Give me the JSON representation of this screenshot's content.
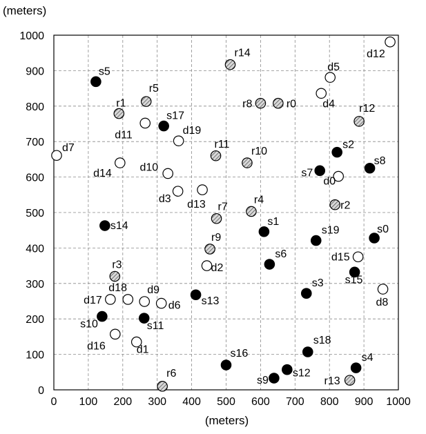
{
  "chart_data": {
    "type": "scatter",
    "ylabel": "(meters)",
    "xlabel": "(meters)",
    "xlim": [
      0,
      1000
    ],
    "ylim": [
      0,
      1000
    ],
    "xticks": [
      0,
      100,
      200,
      300,
      400,
      500,
      600,
      700,
      800,
      900,
      1000
    ],
    "yticks": [
      0,
      100,
      200,
      300,
      400,
      500,
      600,
      700,
      800,
      900,
      1000
    ],
    "grid": true,
    "series": [
      {
        "marker": "filled",
        "color": "#000000",
        "points": [
          {
            "label": "s0",
            "x": 930,
            "y": 428
          },
          {
            "label": "s1",
            "x": 610,
            "y": 446
          },
          {
            "label": "s2",
            "x": 822,
            "y": 670
          },
          {
            "label": "s3",
            "x": 733,
            "y": 272
          },
          {
            "label": "s4",
            "x": 877,
            "y": 62
          },
          {
            "label": "s5",
            "x": 122,
            "y": 869
          },
          {
            "label": "s6",
            "x": 626,
            "y": 354
          },
          {
            "label": "s7",
            "x": 772,
            "y": 618
          },
          {
            "label": "s8",
            "x": 917,
            "y": 625
          },
          {
            "label": "s9",
            "x": 639,
            "y": 33
          },
          {
            "label": "s10",
            "x": 140,
            "y": 207
          },
          {
            "label": "s11",
            "x": 262,
            "y": 202
          },
          {
            "label": "s12",
            "x": 677,
            "y": 57
          },
          {
            "label": "s13",
            "x": 412,
            "y": 268
          },
          {
            "label": "s14",
            "x": 148,
            "y": 463
          },
          {
            "label": "s15",
            "x": 873,
            "y": 332
          },
          {
            "label": "s16",
            "x": 500,
            "y": 70
          },
          {
            "label": "s17",
            "x": 319,
            "y": 744
          },
          {
            "label": "s18",
            "x": 737,
            "y": 107
          },
          {
            "label": "s19",
            "x": 761,
            "y": 421
          }
        ]
      },
      {
        "marker": "open",
        "color": "#ffffff",
        "points": [
          {
            "label": "d0",
            "x": 826,
            "y": 602
          },
          {
            "label": "d1",
            "x": 240,
            "y": 135
          },
          {
            "label": "d2",
            "x": 444,
            "y": 350
          },
          {
            "label": "d3",
            "x": 360,
            "y": 560
          },
          {
            "label": "d4",
            "x": 776,
            "y": 836
          },
          {
            "label": "d5",
            "x": 802,
            "y": 881
          },
          {
            "label": "d6",
            "x": 312,
            "y": 244
          },
          {
            "label": "d7",
            "x": 8,
            "y": 661
          },
          {
            "label": "d8",
            "x": 955,
            "y": 284
          },
          {
            "label": "d9",
            "x": 263,
            "y": 249
          },
          {
            "label": "d10",
            "x": 331,
            "y": 610
          },
          {
            "label": "d11",
            "x": 265,
            "y": 752
          },
          {
            "label": "d12",
            "x": 976,
            "y": 981
          },
          {
            "label": "d13",
            "x": 431,
            "y": 564
          },
          {
            "label": "d14",
            "x": 192,
            "y": 640
          },
          {
            "label": "d15",
            "x": 883,
            "y": 375
          },
          {
            "label": "d16",
            "x": 178,
            "y": 157
          },
          {
            "label": "d17",
            "x": 164,
            "y": 255
          },
          {
            "label": "d18",
            "x": 215,
            "y": 255
          },
          {
            "label": "d19",
            "x": 362,
            "y": 702
          }
        ]
      },
      {
        "marker": "hatched",
        "color": "#bbbbbb",
        "points": [
          {
            "label": "r0",
            "x": 651,
            "y": 808
          },
          {
            "label": "r1",
            "x": 189,
            "y": 779
          },
          {
            "label": "r2",
            "x": 816,
            "y": 522
          },
          {
            "label": "r3",
            "x": 177,
            "y": 320
          },
          {
            "label": "r4",
            "x": 573,
            "y": 503
          },
          {
            "label": "r5",
            "x": 268,
            "y": 813
          },
          {
            "label": "r6",
            "x": 315,
            "y": 10
          },
          {
            "label": "r7",
            "x": 472,
            "y": 483
          },
          {
            "label": "r8",
            "x": 600,
            "y": 808
          },
          {
            "label": "r9",
            "x": 453,
            "y": 397
          },
          {
            "label": "r10",
            "x": 561,
            "y": 640
          },
          {
            "label": "r11",
            "x": 470,
            "y": 660
          },
          {
            "label": "r12",
            "x": 886,
            "y": 757
          },
          {
            "label": "r13",
            "x": 859,
            "y": 27
          },
          {
            "label": "r14",
            "x": 512,
            "y": 917
          }
        ]
      }
    ]
  }
}
